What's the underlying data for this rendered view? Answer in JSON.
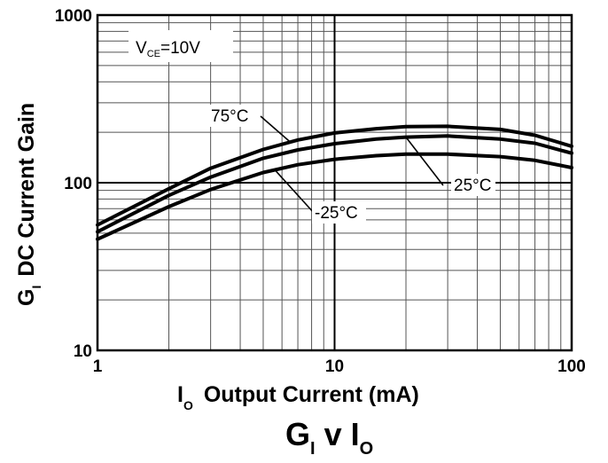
{
  "chart_data": {
    "type": "line",
    "title": {
      "main": "G",
      "main_sub": "I",
      "mid": " v ",
      "end": "I",
      "end_sub": "O"
    },
    "xlabel": {
      "symbol": "I",
      "symbol_sub": "O",
      "text": "Output Current (mA)"
    },
    "ylabel": {
      "symbol": "G",
      "symbol_sub": "I",
      "text": "DC Current Gain"
    },
    "x_scale": "log",
    "y_scale": "log",
    "xlim": [
      1,
      100
    ],
    "ylim": [
      10,
      1000
    ],
    "grid": true,
    "x_ticks": [
      {
        "value": 1,
        "label": "1"
      },
      {
        "value": 10,
        "label": "10"
      },
      {
        "value": 100,
        "label": "100"
      }
    ],
    "y_ticks": [
      {
        "value": 10,
        "label": "10"
      },
      {
        "value": 100,
        "label": "100"
      },
      {
        "value": 1000,
        "label": "1000"
      }
    ],
    "condition": {
      "symbol": "V",
      "symbol_sub": "CE",
      "text": "=10V"
    },
    "series": [
      {
        "name": "75°C",
        "points": [
          [
            1,
            56
          ],
          [
            2,
            92
          ],
          [
            3,
            122
          ],
          [
            5,
            158
          ],
          [
            7,
            180
          ],
          [
            10,
            198
          ],
          [
            15,
            210
          ],
          [
            20,
            216
          ],
          [
            30,
            217
          ],
          [
            50,
            208
          ],
          [
            70,
            192
          ],
          [
            100,
            165
          ]
        ]
      },
      {
        "name": "25°C",
        "points": [
          [
            1,
            51
          ],
          [
            2,
            84
          ],
          [
            3,
            108
          ],
          [
            5,
            140
          ],
          [
            7,
            157
          ],
          [
            10,
            171
          ],
          [
            15,
            182
          ],
          [
            20,
            187
          ],
          [
            30,
            190
          ],
          [
            50,
            182
          ],
          [
            70,
            172
          ],
          [
            100,
            150
          ]
        ]
      },
      {
        "name": "-25°C",
        "points": [
          [
            1,
            46
          ],
          [
            2,
            72
          ],
          [
            3,
            91
          ],
          [
            5,
            115
          ],
          [
            7,
            128
          ],
          [
            10,
            138
          ],
          [
            15,
            145
          ],
          [
            20,
            148
          ],
          [
            30,
            148
          ],
          [
            50,
            143
          ],
          [
            70,
            136
          ],
          [
            100,
            123
          ]
        ]
      }
    ],
    "annotations": [
      {
        "label": "75°C",
        "series": "75°C",
        "anchor_x": 6.5
      },
      {
        "label": "25°C",
        "series": "25°C",
        "anchor_x": 20
      },
      {
        "label": "-25°C",
        "series": "-25°C",
        "anchor_x": 5.6
      }
    ]
  }
}
